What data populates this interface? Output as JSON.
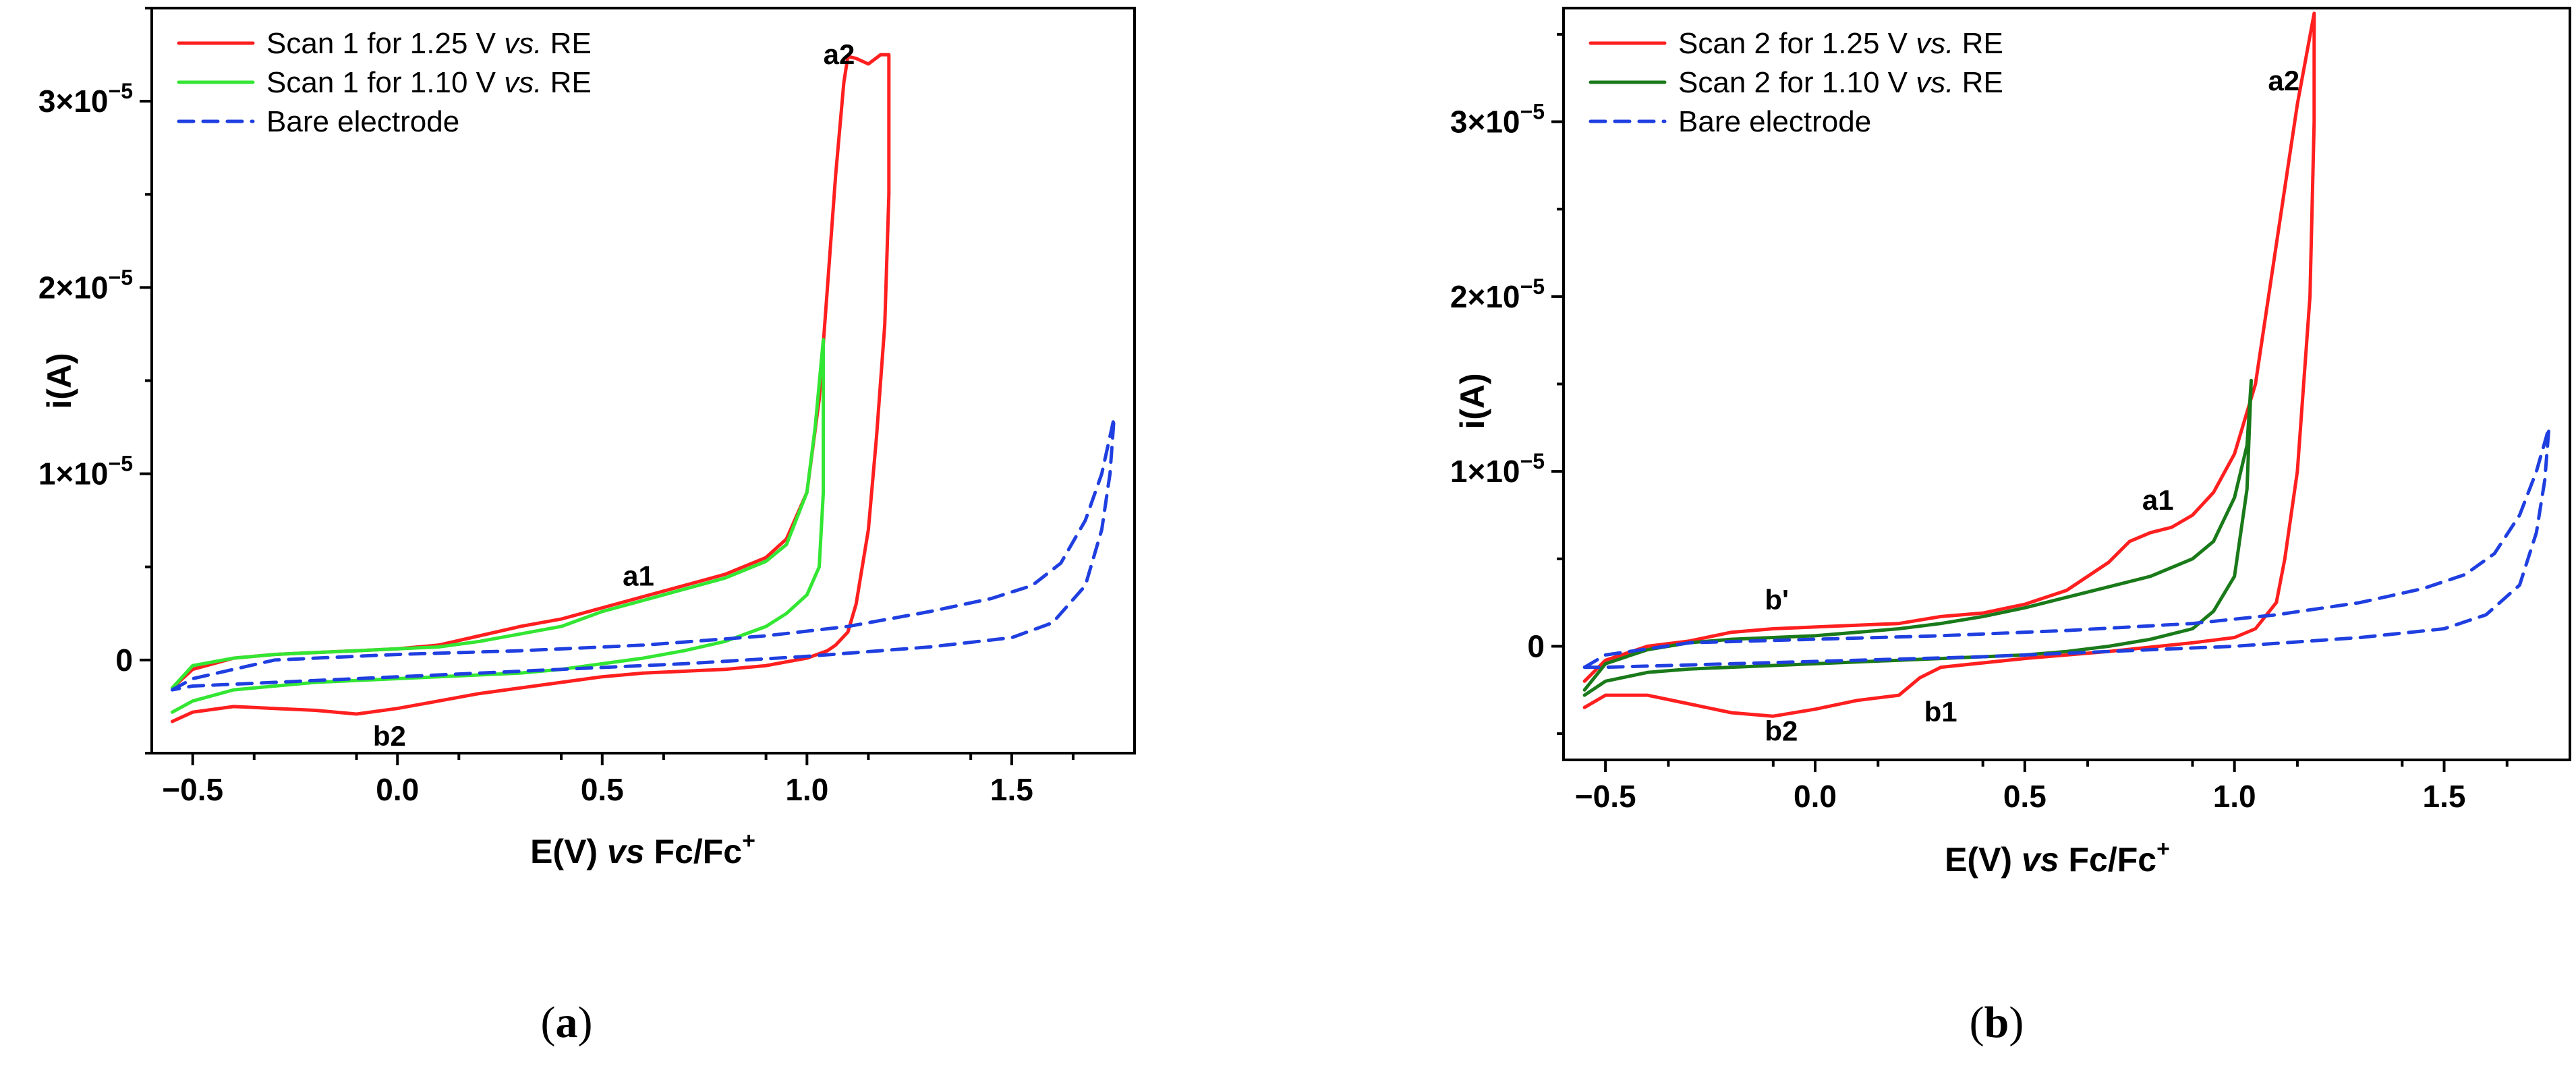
{
  "chart_data": [
    {
      "panel": "a",
      "type": "line",
      "xlabel_prefix": "E(V) ",
      "xlabel_italic": "vs",
      "xlabel_suffix": " Fc/Fc",
      "xlabel_sup": "+",
      "ylabel": "i(A)",
      "xlim": [
        -0.6,
        1.8
      ],
      "ylim": [
        -5e-06,
        3.5e-05
      ],
      "xticks": [
        -0.5,
        0.0,
        0.5,
        1.0,
        1.5
      ],
      "xtick_labels": [
        "−0.5",
        "0.0",
        "0.5",
        "1.0",
        "1.5"
      ],
      "yticks": [
        0,
        1e-05,
        2e-05,
        3e-05
      ],
      "ytick_mantissas": [
        "0",
        "1×10",
        "2×10",
        "3×10"
      ],
      "ytick_exponent": "−5",
      "legend_position": "top-left",
      "series": [
        {
          "name": "Scan 1 for 1.25 V vs. RE",
          "legend_prefix": "Scan 1 for 1.25 V ",
          "legend_italic": "vs.",
          "legend_suffix": " RE",
          "color": "#ff1f1f",
          "dash": "solid",
          "x": [
            -0.55,
            -0.5,
            -0.4,
            -0.3,
            -0.2,
            -0.1,
            0.0,
            0.1,
            0.2,
            0.3,
            0.4,
            0.5,
            0.6,
            0.7,
            0.8,
            0.9,
            0.95,
            1.0,
            1.03,
            1.05,
            1.07,
            1.09,
            1.1,
            1.12,
            1.15,
            1.18,
            1.2,
            1.2,
            1.19,
            1.17,
            1.15,
            1.12,
            1.1,
            1.07,
            1.05,
            1.0,
            0.9,
            0.8,
            0.7,
            0.6,
            0.5,
            0.4,
            0.3,
            0.2,
            0.1,
            0.0,
            -0.1,
            -0.2,
            -0.3,
            -0.4,
            -0.5,
            -0.55
          ],
          "y": [
            -1.5e-06,
            -5e-07,
            1e-07,
            3e-07,
            4e-07,
            5e-07,
            6e-07,
            8e-07,
            1.3e-06,
            1.8e-06,
            2.2e-06,
            2.8e-06,
            3.4e-06,
            4e-06,
            4.6e-06,
            5.5e-06,
            6.5e-06,
            9e-06,
            1.4e-05,
            2e-05,
            2.6e-05,
            3.1e-05,
            3.24e-05,
            3.23e-05,
            3.2e-05,
            3.25e-05,
            3.25e-05,
            2.5e-05,
            1.8e-05,
            1.2e-05,
            7e-06,
            3e-06,
            1.5e-06,
            8e-07,
            5e-07,
            1e-07,
            -3e-07,
            -5e-07,
            -6e-07,
            -7e-07,
            -9e-07,
            -1.2e-06,
            -1.5e-06,
            -1.8e-06,
            -2.2e-06,
            -2.6e-06,
            -2.9e-06,
            -2.7e-06,
            -2.6e-06,
            -2.5e-06,
            -2.8e-06,
            -3.3e-06
          ]
        },
        {
          "name": "Scan 1 for 1.10 V vs. RE",
          "legend_prefix": "Scan 1 for 1.10 V ",
          "legend_italic": "vs.",
          "legend_suffix": " RE",
          "color": "#33e633",
          "dash": "solid",
          "x": [
            -0.55,
            -0.5,
            -0.4,
            -0.3,
            -0.2,
            -0.1,
            0.0,
            0.1,
            0.2,
            0.3,
            0.4,
            0.5,
            0.6,
            0.7,
            0.8,
            0.9,
            0.95,
            1.0,
            1.02,
            1.04,
            1.04,
            1.03,
            1.0,
            0.95,
            0.9,
            0.8,
            0.7,
            0.6,
            0.5,
            0.4,
            0.3,
            0.2,
            0.1,
            0.0,
            -0.1,
            -0.2,
            -0.3,
            -0.4,
            -0.5,
            -0.55
          ],
          "y": [
            -1.5e-06,
            -3e-07,
            1e-07,
            3e-07,
            4e-07,
            5e-07,
            6e-07,
            7e-07,
            1e-06,
            1.4e-06,
            1.8e-06,
            2.6e-06,
            3.2e-06,
            3.8e-06,
            4.4e-06,
            5.3e-06,
            6.2e-06,
            9e-06,
            1.25e-05,
            1.72e-05,
            9e-06,
            5e-06,
            3.5e-06,
            2.5e-06,
            1.8e-06,
            1e-06,
            5e-07,
            1e-07,
            -2e-07,
            -5e-07,
            -7e-07,
            -8e-07,
            -9e-07,
            -1e-06,
            -1.1e-06,
            -1.2e-06,
            -1.4e-06,
            -1.6e-06,
            -2.2e-06,
            -2.8e-06
          ]
        },
        {
          "name": "Bare electrode",
          "legend_prefix": "Bare electrode",
          "legend_italic": "",
          "legend_suffix": "",
          "color": "#1f3fe0",
          "dash": "dashed",
          "x": [
            -0.55,
            -0.5,
            -0.3,
            0.0,
            0.3,
            0.6,
            0.9,
            1.1,
            1.3,
            1.45,
            1.55,
            1.62,
            1.68,
            1.72,
            1.75,
            1.74,
            1.72,
            1.68,
            1.6,
            1.5,
            1.3,
            1.0,
            0.7,
            0.4,
            0.1,
            -0.2,
            -0.5,
            -0.55
          ],
          "y": [
            -1.6e-06,
            -1e-06,
            0,
            3e-07,
            5e-07,
            8e-07,
            1.3e-06,
            1.8e-06,
            2.6e-06,
            3.3e-06,
            4e-06,
            5.2e-06,
            7.5e-06,
            1e-05,
            1.3e-05,
            1e-05,
            7e-06,
            4e-06,
            2e-06,
            1.2e-06,
            7e-07,
            2e-07,
            -2e-07,
            -5e-07,
            -8e-07,
            -1.1e-06,
            -1.4e-06,
            -1.6e-06
          ]
        }
      ],
      "annotations": [
        {
          "text": "a2",
          "x": 1.04,
          "y": 3.2e-05
        },
        {
          "text": "a1",
          "x": 0.55,
          "y": 4e-06
        },
        {
          "text": "b2",
          "x": -0.06,
          "y": -4.6e-06
        }
      ]
    },
    {
      "panel": "b",
      "type": "line",
      "xlabel_prefix": "E(V) ",
      "xlabel_italic": "vs",
      "xlabel_suffix": " Fc/Fc",
      "xlabel_sup": "+",
      "ylabel": "i(A)",
      "xlim": [
        -0.6,
        1.8
      ],
      "ylim": [
        -6.5e-06,
        3.65e-05
      ],
      "xticks": [
        -0.5,
        0.0,
        0.5,
        1.0,
        1.5
      ],
      "xtick_labels": [
        "−0.5",
        "0.0",
        "0.5",
        "1.0",
        "1.5"
      ],
      "yticks": [
        0,
        1e-05,
        2e-05,
        3e-05
      ],
      "ytick_mantissas": [
        "0",
        "1×10",
        "2×10",
        "3×10"
      ],
      "ytick_exponent": "−5",
      "legend_position": "top-left",
      "series": [
        {
          "name": "Scan 2 for 1.25 V vs. RE",
          "legend_prefix": "Scan 2 for 1.25 V ",
          "legend_italic": "vs.",
          "legend_suffix": " RE",
          "color": "#ff1f1f",
          "dash": "solid",
          "x": [
            -0.55,
            -0.5,
            -0.4,
            -0.3,
            -0.2,
            -0.1,
            0.0,
            0.1,
            0.2,
            0.3,
            0.4,
            0.5,
            0.6,
            0.7,
            0.75,
            0.8,
            0.85,
            0.9,
            0.95,
            1.0,
            1.05,
            1.1,
            1.15,
            1.19,
            1.19,
            1.18,
            1.15,
            1.12,
            1.1,
            1.05,
            1.0,
            0.9,
            0.7,
            0.5,
            0.3,
            0.25,
            0.2,
            0.1,
            0.0,
            -0.1,
            -0.2,
            -0.3,
            -0.4,
            -0.5,
            -0.55
          ],
          "y": [
            -2e-06,
            -8e-07,
            0,
            3e-07,
            8e-07,
            1e-06,
            1.1e-06,
            1.2e-06,
            1.3e-06,
            1.7e-06,
            1.9e-06,
            2.4e-06,
            3.2e-06,
            4.8e-06,
            6e-06,
            6.5e-06,
            6.8e-06,
            7.5e-06,
            8.8e-06,
            1.1e-05,
            1.5e-05,
            2.3e-05,
            3.1e-05,
            3.62e-05,
            3e-05,
            2e-05,
            1e-05,
            5e-06,
            2.5e-06,
            1e-06,
            5e-07,
            2e-07,
            -3e-07,
            -7e-07,
            -1.2e-06,
            -1.8e-06,
            -2.8e-06,
            -3.1e-06,
            -3.6e-06,
            -4e-06,
            -3.8e-06,
            -3.3e-06,
            -2.8e-06,
            -2.8e-06,
            -3.5e-06
          ]
        },
        {
          "name": "Scan 2 for 1.10 V vs. RE",
          "legend_prefix": "Scan 2 for 1.10 V ",
          "legend_italic": "vs.",
          "legend_suffix": " RE",
          "color": "#1a7a1a",
          "dash": "solid",
          "x": [
            -0.55,
            -0.5,
            -0.4,
            -0.3,
            -0.2,
            -0.1,
            0.0,
            0.1,
            0.2,
            0.3,
            0.4,
            0.5,
            0.6,
            0.7,
            0.8,
            0.9,
            0.95,
            1.0,
            1.03,
            1.04,
            1.03,
            1.0,
            0.95,
            0.9,
            0.8,
            0.7,
            0.6,
            0.5,
            0.4,
            0.3,
            0.2,
            0.1,
            0.0,
            -0.1,
            -0.2,
            -0.3,
            -0.4,
            -0.5,
            -0.55
          ],
          "y": [
            -2.5e-06,
            -1e-06,
            -2e-07,
            2e-07,
            4e-07,
            5e-07,
            6e-07,
            8e-07,
            1e-06,
            1.3e-06,
            1.7e-06,
            2.2e-06,
            2.8e-06,
            3.4e-06,
            4e-06,
            5e-06,
            6e-06,
            8.5e-06,
            1.15e-05,
            1.52e-05,
            9e-06,
            4e-06,
            2e-06,
            1e-06,
            4e-07,
            0,
            -3e-07,
            -5e-07,
            -6e-07,
            -7e-07,
            -8e-07,
            -9e-07,
            -1e-06,
            -1.1e-06,
            -1.2e-06,
            -1.3e-06,
            -1.5e-06,
            -2e-06,
            -2.8e-06
          ]
        },
        {
          "name": "Bare electrode",
          "legend_prefix": "Bare electrode",
          "legend_italic": "",
          "legend_suffix": "",
          "color": "#1f3fe0",
          "dash": "dashed",
          "x": [
            -0.55,
            -0.5,
            -0.3,
            0.0,
            0.3,
            0.6,
            0.9,
            1.1,
            1.3,
            1.45,
            1.55,
            1.62,
            1.68,
            1.72,
            1.75,
            1.74,
            1.72,
            1.68,
            1.6,
            1.5,
            1.3,
            1.0,
            0.7,
            0.4,
            0.1,
            -0.2,
            -0.5,
            -0.55
          ],
          "y": [
            -1.2e-06,
            -5e-07,
            2e-07,
            4e-07,
            6e-07,
            9e-07,
            1.3e-06,
            1.8e-06,
            2.5e-06,
            3.3e-06,
            4.1e-06,
            5.3e-06,
            7.5e-06,
            1e-05,
            1.25e-05,
            9.5e-06,
            6.5e-06,
            3.5e-06,
            1.8e-06,
            1e-06,
            5e-07,
            0,
            -3e-07,
            -6e-07,
            -8e-07,
            -1e-06,
            -1.2e-06,
            -1.2e-06
          ]
        }
      ],
      "annotations": [
        {
          "text": "a2",
          "x": 1.08,
          "y": 3.18e-05
        },
        {
          "text": "a1",
          "x": 0.78,
          "y": 7.8e-06
        },
        {
          "text": "b'",
          "x": -0.12,
          "y": 2.1e-06
        },
        {
          "text": "b2",
          "x": -0.12,
          "y": -5.4e-06
        },
        {
          "text": "b1",
          "x": 0.26,
          "y": -4.3e-06
        }
      ]
    }
  ]
}
